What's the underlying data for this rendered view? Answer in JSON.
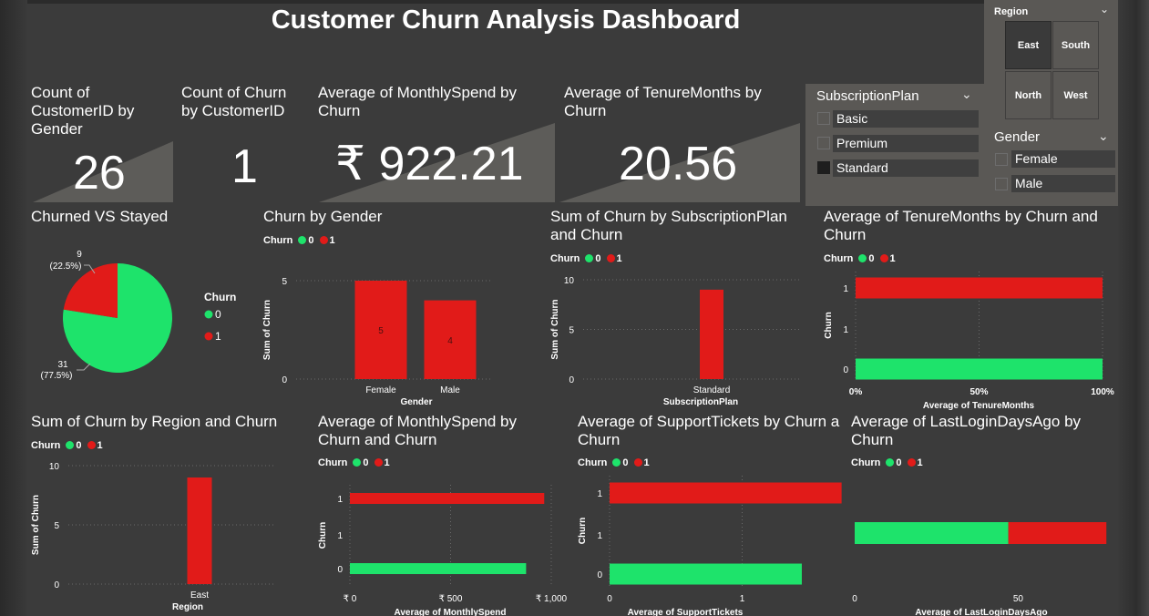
{
  "dashboard": {
    "title": "Customer Churn Analysis Dashboard"
  },
  "colors": {
    "stayed": "#1ee36b",
    "churned": "#e11b19",
    "background": "#3b3b3b",
    "panel": "#5a5855"
  },
  "kpis": [
    {
      "title": "Count of CustomerID by Gender",
      "value": "26"
    },
    {
      "title": "Count of Churn by CustomerID",
      "value": "1"
    },
    {
      "title": "Average of MonthlySpend by Churn",
      "value": "₹ 922.21"
    },
    {
      "title": "Average of TenureMonths by Churn",
      "value": "20.56"
    }
  ],
  "slicers": {
    "region": {
      "title": "Region",
      "options": [
        {
          "label": "East",
          "selected": true
        },
        {
          "label": "South",
          "selected": false
        },
        {
          "label": "North",
          "selected": false
        },
        {
          "label": "West",
          "selected": false
        }
      ]
    },
    "subscription_plan": {
      "title": "SubscriptionPlan",
      "options": [
        {
          "label": "Basic",
          "checked": false
        },
        {
          "label": "Premium",
          "checked": false
        },
        {
          "label": "Standard",
          "checked": true
        }
      ]
    },
    "gender": {
      "title": "Gender",
      "options": [
        {
          "label": "Female",
          "checked": false
        },
        {
          "label": "Male",
          "checked": false
        }
      ]
    }
  },
  "legend": {
    "title": "Churn",
    "items": [
      "0",
      "1"
    ]
  },
  "charts": {
    "pie": {
      "title": "Churned VS Stayed"
    },
    "gender": {
      "title": "Churn by Gender"
    },
    "plan": {
      "title": "Sum of Churn by SubscriptionPlan and Churn"
    },
    "tenure": {
      "title": "Average of TenureMonths by Churn and Churn"
    },
    "region": {
      "title": "Sum of Churn by Region and Churn"
    },
    "spend": {
      "title": "Average of MonthlySpend by Churn and Churn"
    },
    "tickets": {
      "title": "Average of SupportTickets by Churn a Churn"
    },
    "login": {
      "title": "Average of LastLoginDaysAgo by Churn"
    }
  },
  "chart_data": [
    {
      "id": "pie",
      "type": "pie",
      "title": "Churned VS Stayed",
      "slices": [
        {
          "name": "0",
          "value": 31,
          "label": "31",
          "pct": "(77.5%)"
        },
        {
          "name": "1",
          "value": 9,
          "label": "9",
          "pct": "(22.5%)"
        }
      ],
      "legend_title": "Churn",
      "legend_placement": "right"
    },
    {
      "id": "gender",
      "type": "bar",
      "title": "Churn by Gender",
      "categories": [
        "Female",
        "Male"
      ],
      "values": [
        5,
        4
      ],
      "series_color": "1",
      "xlabel": "Gender",
      "ylabel": "Sum of Churn",
      "ylim": [
        0,
        5
      ],
      "yticks": [
        "0",
        "5"
      ],
      "data_labels": [
        "5",
        "4"
      ],
      "grid": true
    },
    {
      "id": "plan",
      "type": "bar",
      "title": "Sum of Churn by SubscriptionPlan and Churn",
      "categories": [
        "Standard"
      ],
      "values": [
        9
      ],
      "series_color": "1",
      "xlabel": "SubscriptionPlan",
      "ylabel": "Sum of Churn",
      "ylim": [
        0,
        10
      ],
      "yticks": [
        "0",
        "5",
        "10"
      ],
      "grid": true
    },
    {
      "id": "tenure",
      "type": "bar",
      "orientation": "horizontal",
      "stacked_100": true,
      "title": "Average of TenureMonths by Churn and Churn",
      "categories": [
        "1",
        "1",
        "0"
      ],
      "series": [
        {
          "name": "0",
          "values": [
            0,
            0,
            100
          ]
        },
        {
          "name": "1",
          "values": [
            100,
            0,
            0
          ]
        }
      ],
      "xlabel": "Average of TenureMonths",
      "ylabel": "Churn",
      "xlim": [
        0,
        100
      ],
      "xticks": [
        "0%",
        "50%",
        "100%"
      ],
      "grid": true
    },
    {
      "id": "region",
      "type": "bar",
      "title": "Sum of Churn by Region and Churn",
      "categories": [
        "East"
      ],
      "values": [
        9
      ],
      "series_color": "1",
      "xlabel": "Region",
      "ylabel": "Sum of Churn",
      "ylim": [
        0,
        10
      ],
      "yticks": [
        "0",
        "5",
        "10"
      ],
      "grid": true
    },
    {
      "id": "spend",
      "type": "bar",
      "orientation": "horizontal",
      "title": "Average of MonthlySpend by Churn and Churn",
      "categories": [
        "1",
        "1",
        "0"
      ],
      "series": [
        {
          "name": "0",
          "values": [
            0,
            0,
            875
          ]
        },
        {
          "name": "1",
          "values": [
            965,
            0,
            0
          ]
        }
      ],
      "xlabel": "Average of MonthlySpend",
      "ylabel": "Churn",
      "xlim": [
        0,
        1000
      ],
      "xticks": [
        "₹ 0",
        "₹ 500",
        "₹ 1,000"
      ],
      "xtick_values": [
        0,
        500,
        1000
      ],
      "grid": true
    },
    {
      "id": "tickets",
      "type": "bar",
      "orientation": "horizontal",
      "title": "Average of SupportTickets by Churn a Churn",
      "categories": [
        "1",
        "1",
        "0"
      ],
      "series": [
        {
          "name": "0",
          "values": [
            0,
            0,
            1.45
          ]
        },
        {
          "name": "1",
          "values": [
            1.75,
            0,
            0
          ]
        }
      ],
      "xlabel": "Average of SupportTickets",
      "ylabel": "Churn",
      "xlim": [
        0,
        2
      ],
      "xticks": [
        "0",
        "1"
      ],
      "xtick_values": [
        0,
        1
      ],
      "grid": true
    },
    {
      "id": "login",
      "type": "bar",
      "orientation": "horizontal",
      "stacked": true,
      "title": "Average of LastLoginDaysAgo by Churn",
      "categories": [
        ""
      ],
      "series": [
        {
          "name": "0",
          "values": [
            47
          ]
        },
        {
          "name": "1",
          "values": [
            30
          ]
        }
      ],
      "xlabel": "Average of LastLoginDaysAgo",
      "xlim": [
        0,
        80
      ],
      "xticks": [
        "0",
        "50"
      ],
      "xtick_values": [
        0,
        50
      ],
      "grid": false
    }
  ]
}
